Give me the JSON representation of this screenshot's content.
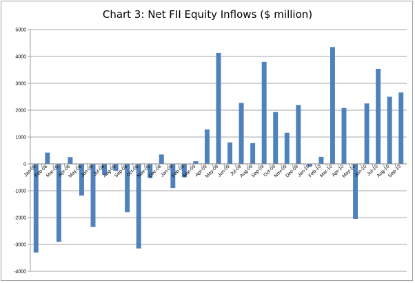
{
  "chart_data": {
    "type": "bar",
    "title": "Chart 3: Net FII Equity Inflows ($ million)",
    "xlabel": "",
    "ylabel": "",
    "ylim": [
      -4000,
      5000
    ],
    "yticks": [
      -4000,
      -3000,
      -2000,
      -1000,
      0,
      1000,
      2000,
      3000,
      4000,
      5000
    ],
    "grid": "horizontal",
    "legend": "none",
    "bar_color": "#4f81bd",
    "categories": [
      "Jan-08",
      "Feb-08",
      "Mar-08",
      "Apr-08",
      "May-08",
      "Jun-08",
      "Jul-08",
      "Aug-08",
      "Sep-08",
      "Oct-08",
      "Nov-08",
      "Dec-08",
      "Jan-09",
      "Feb-09",
      "Mar-09",
      "Apr-09",
      "May-09",
      "Jun-09",
      "Jul-09",
      "Aug-09",
      "Sep-09",
      "Oct-09",
      "Nov-09",
      "Dec-09",
      "Jan-10",
      "Feb-10",
      "Mar-10",
      "Apr-10",
      "May-10",
      "Jun-10",
      "Jul-10",
      "Aug-10",
      "Sep-10"
    ],
    "values": [
      -3300,
      420,
      -2900,
      250,
      -1180,
      -2350,
      -400,
      -260,
      -1800,
      -3150,
      -530,
      350,
      -900,
      -500,
      100,
      1280,
      4130,
      800,
      2270,
      770,
      3800,
      1930,
      1160,
      2190,
      -100,
      260,
      4350,
      2080,
      -2050,
      2250,
      3540,
      2500,
      2660
    ]
  }
}
